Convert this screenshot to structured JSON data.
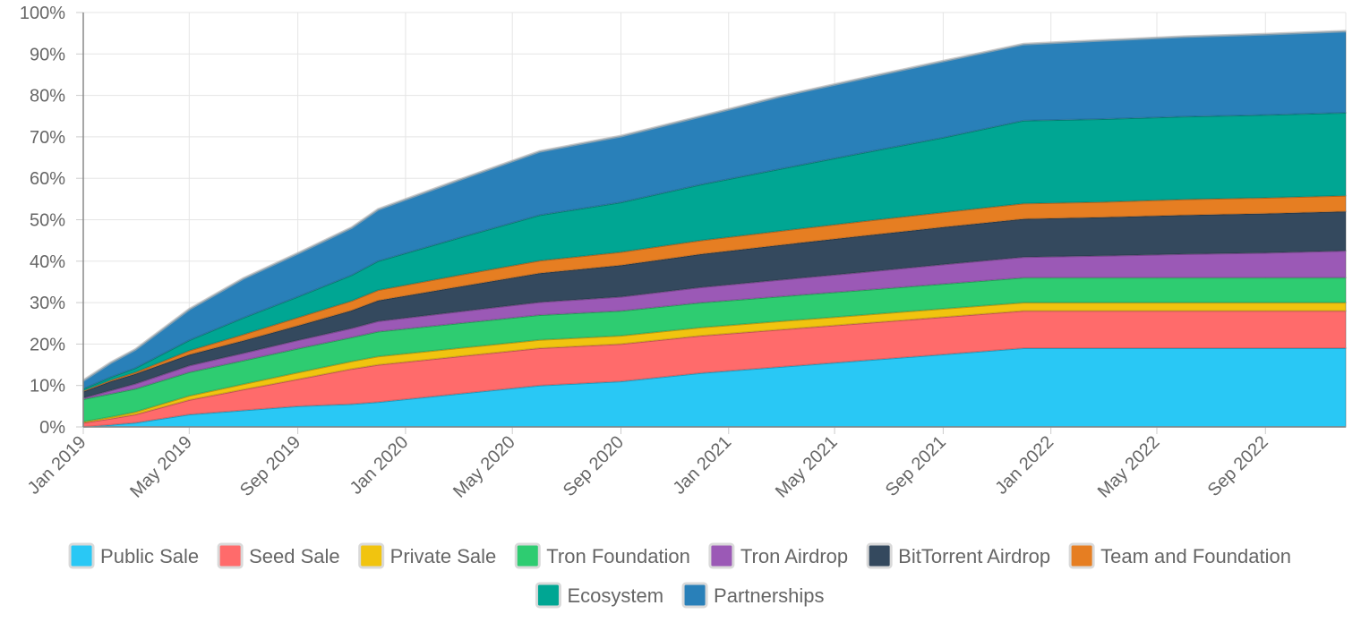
{
  "chart_data": {
    "type": "area",
    "stacked": true,
    "x_ticks": [
      "Jan 2019",
      "May 2019",
      "Sep 2019",
      "Jan 2020",
      "May 2020",
      "Sep 2020",
      "Jan 2021",
      "May 2021",
      "Sep 2021",
      "Jan 2022",
      "May 2022",
      "Sep 2022"
    ],
    "y_ticks": [
      "0%",
      "10%",
      "20%",
      "30%",
      "40%",
      "50%",
      "60%",
      "70%",
      "80%",
      "90%",
      "100%"
    ],
    "ylim": [
      0,
      100
    ],
    "grid": true,
    "legend_position": "bottom",
    "x_dates": [
      "2019-01",
      "2019-02",
      "2019-03",
      "2019-05",
      "2019-07",
      "2019-09",
      "2019-11",
      "2019-12",
      "2020-03",
      "2020-06",
      "2020-09",
      "2020-12",
      "2021-03",
      "2021-06",
      "2021-09",
      "2021-12",
      "2022-03",
      "2022-06",
      "2022-09",
      "2022-12"
    ],
    "series": [
      {
        "name": "Public Sale",
        "color": "#29c8f5",
        "values": [
          0,
          0.5,
          1,
          3,
          4,
          5,
          5.5,
          6,
          8,
          10,
          11,
          13,
          14.5,
          16,
          17.5,
          19,
          19,
          19,
          19,
          19
        ]
      },
      {
        "name": "Seed Sale",
        "color": "#ff6b6b",
        "values": [
          1,
          1.5,
          2,
          3.5,
          5,
          6.5,
          8.5,
          9,
          9,
          9,
          9,
          9,
          9,
          9,
          9,
          9,
          9,
          9,
          9,
          9
        ]
      },
      {
        "name": "Private Sale",
        "color": "#f1c40f",
        "values": [
          0.2,
          0.4,
          0.6,
          1,
          1.3,
          1.6,
          1.8,
          2,
          2,
          2,
          2,
          2,
          2,
          2,
          2,
          2,
          2,
          2,
          2,
          2
        ]
      },
      {
        "name": "Tron Foundation",
        "color": "#2ecc71",
        "values": [
          5.5,
          5.6,
          5.6,
          5.7,
          5.7,
          5.8,
          5.8,
          6,
          6,
          6,
          6,
          6,
          6,
          6,
          6,
          6,
          6,
          6,
          6,
          6
        ]
      },
      {
        "name": "Tron Airdrop",
        "color": "#9b59b6",
        "values": [
          0.3,
          0.8,
          1.2,
          1.6,
          1.8,
          2,
          2.2,
          2.5,
          2.8,
          3.1,
          3.4,
          3.7,
          4,
          4.3,
          4.7,
          5,
          5.3,
          5.7,
          6,
          6.5
        ]
      },
      {
        "name": "BitTorrent Airdrop",
        "color": "#34495e",
        "values": [
          1.5,
          2.2,
          2.4,
          2.6,
          3,
          3.5,
          4.3,
          5,
          6,
          7,
          7.6,
          8,
          8.4,
          8.8,
          9,
          9.2,
          9.3,
          9.4,
          9.5,
          9.5
        ]
      },
      {
        "name": "Team and Foundation",
        "color": "#e67e22",
        "values": [
          0.2,
          0.3,
          0.4,
          1,
          1.5,
          2,
          2.3,
          2.5,
          2.8,
          3,
          3.2,
          3.3,
          3.4,
          3.5,
          3.6,
          3.7,
          3.7,
          3.8,
          3.8,
          3.8
        ]
      },
      {
        "name": "Ecosystem",
        "color": "#00a693",
        "values": [
          0.5,
          0.7,
          1,
          2.5,
          4,
          5,
          6.2,
          7,
          9,
          11,
          12,
          13.5,
          15,
          16.5,
          18,
          20,
          20,
          20,
          20,
          20
        ]
      },
      {
        "name": "Partnerships",
        "color": "#2980b9",
        "values": [
          2,
          3.5,
          4.5,
          7.5,
          9.5,
          10.5,
          11.5,
          12.5,
          14,
          15.4,
          16,
          16.5,
          17.5,
          18,
          18.5,
          18.5,
          19,
          19.3,
          19.5,
          19.7
        ]
      }
    ]
  }
}
